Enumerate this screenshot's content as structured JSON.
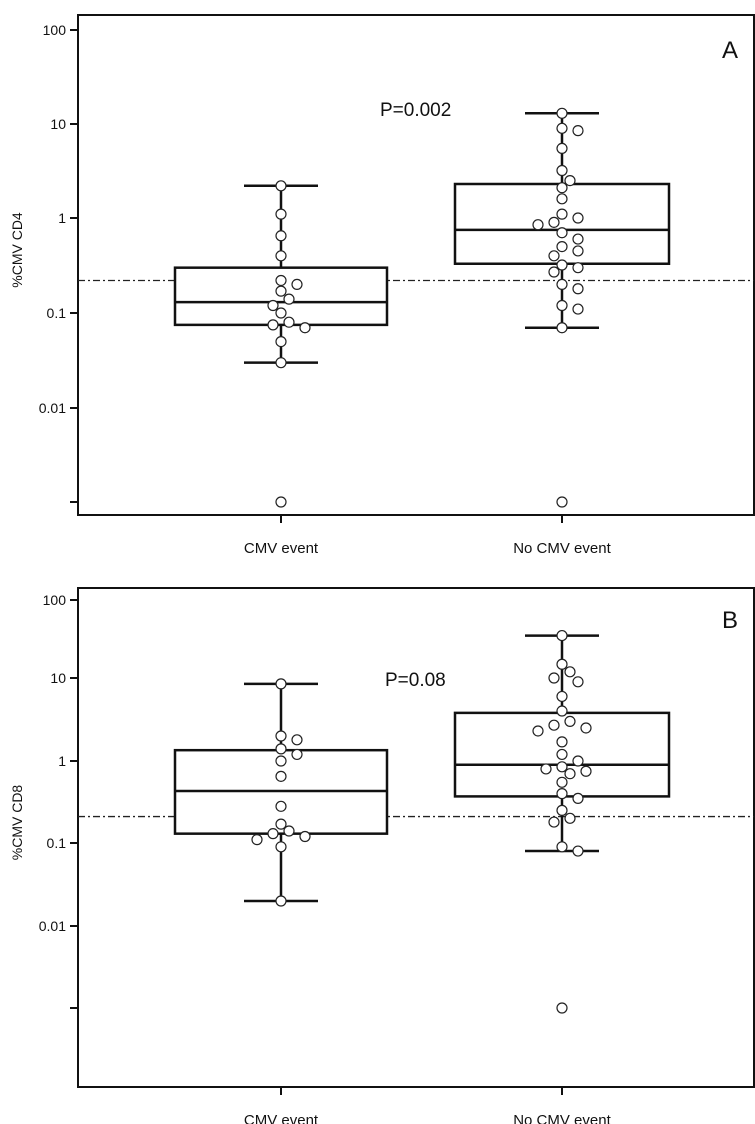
{
  "chart_data": [
    {
      "type": "box",
      "panel_label": "A",
      "ylabel": "%CMV CD4",
      "yscale": "log",
      "ylim": [
        0.001,
        100
      ],
      "yticks": [
        100,
        10,
        1,
        0.1,
        0.01,
        0.001
      ],
      "ytick_labels": [
        "100",
        "10",
        "1",
        "0.1",
        "0.01",
        ""
      ],
      "categories": [
        "CMV event",
        "No CMV event"
      ],
      "annotation": "P=0.002",
      "reference_line": 0.22,
      "boxes": [
        {
          "min": 0.03,
          "q1": 0.075,
          "median": 0.13,
          "q3": 0.3,
          "max": 2.2
        },
        {
          "min": 0.07,
          "q1": 0.33,
          "median": 0.75,
          "q3": 2.3,
          "max": 13
        }
      ],
      "points": [
        [
          2.2,
          1.1,
          0.65,
          0.4,
          0.22,
          0.2,
          0.17,
          0.14,
          0.12,
          0.1,
          0.08,
          0.075,
          0.07,
          0.05,
          0.03,
          0.001
        ],
        [
          13,
          9,
          8.5,
          5.5,
          3.2,
          2.5,
          2.1,
          1.6,
          1.1,
          1.0,
          0.9,
          0.85,
          0.7,
          0.6,
          0.5,
          0.45,
          0.4,
          0.32,
          0.3,
          0.27,
          0.2,
          0.18,
          0.12,
          0.11,
          0.07,
          0.001
        ]
      ]
    },
    {
      "type": "box",
      "panel_label": "B",
      "ylabel": "%CMV CD8",
      "yscale": "log",
      "ylim": [
        0.001,
        100
      ],
      "yticks": [
        100,
        10,
        1,
        0.1,
        0.01,
        0.001
      ],
      "ytick_labels": [
        "100",
        "10",
        "1",
        "0.1",
        "0.01",
        ""
      ],
      "categories": [
        "CMV event",
        "No CMV event"
      ],
      "annotation": "P=0.08",
      "reference_line": 0.21,
      "boxes": [
        {
          "min": 0.02,
          "q1": 0.13,
          "median": 0.43,
          "q3": 1.35,
          "max": 8.5
        },
        {
          "min": 0.08,
          "q1": 0.37,
          "median": 0.9,
          "q3": 3.8,
          "max": 35
        }
      ],
      "points": [
        [
          8.5,
          2.0,
          1.8,
          1.4,
          1.2,
          1.0,
          0.65,
          0.28,
          0.17,
          0.14,
          0.13,
          0.12,
          0.11,
          0.09,
          0.02
        ],
        [
          35,
          15,
          12,
          10,
          9,
          6,
          4,
          3,
          2.7,
          2.5,
          2.3,
          1.7,
          1.2,
          1.0,
          0.85,
          0.8,
          0.75,
          0.7,
          0.55,
          0.4,
          0.35,
          0.25,
          0.2,
          0.18,
          0.09,
          0.08,
          0.001
        ]
      ]
    }
  ]
}
